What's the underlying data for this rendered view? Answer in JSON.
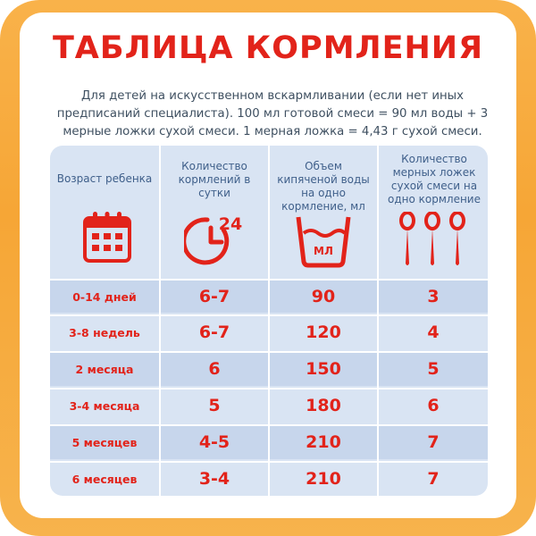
{
  "title": "ТАБЛИЦА КОРМЛЕНИЯ",
  "intro": "Для детей на искусственном вскармливании (если нет иных предписаний специалиста). 100 мл готовой смеси = 90 мл воды + 3 мерные ложки сухой смеси. 1 мерная ложка = 4,43 г сухой смеси.",
  "headers": {
    "age": "Возраст ребенка",
    "feedings": "Количество кормлений в сутки",
    "volume": "Объем кипяченой воды на одно кормление, мл",
    "spoons": "Количество мерных ложек сухой смеси на одно кормление"
  },
  "icons": {
    "calendar": "calendar-icon",
    "clock": "clock-24-icon",
    "water": "measuring-cup-icon",
    "spoons": "measuring-spoons-icon",
    "clock_label": "24",
    "cup_label": "МЛ"
  },
  "rows": [
    {
      "age": "0-14 дней",
      "feedings": "6-7",
      "volume": "90",
      "spoons": "3"
    },
    {
      "age": "3-8 недель",
      "feedings": "6-7",
      "volume": "120",
      "spoons": "4"
    },
    {
      "age": "2 месяца",
      "feedings": "6",
      "volume": "150",
      "spoons": "5"
    },
    {
      "age": "3-4 месяца",
      "feedings": "5",
      "volume": "180",
      "spoons": "6"
    },
    {
      "age": "5 месяцев",
      "feedings": "4-5",
      "volume": "210",
      "spoons": "7"
    },
    {
      "age": "6 месяцев",
      "feedings": "3-4",
      "volume": "210",
      "spoons": "7"
    }
  ],
  "colors": {
    "accent": "#e2231a",
    "frame": "#f6a636",
    "table_bg": "#d9e4f3",
    "table_band": "#c7d6ec",
    "header_text": "#3f5f8a"
  }
}
